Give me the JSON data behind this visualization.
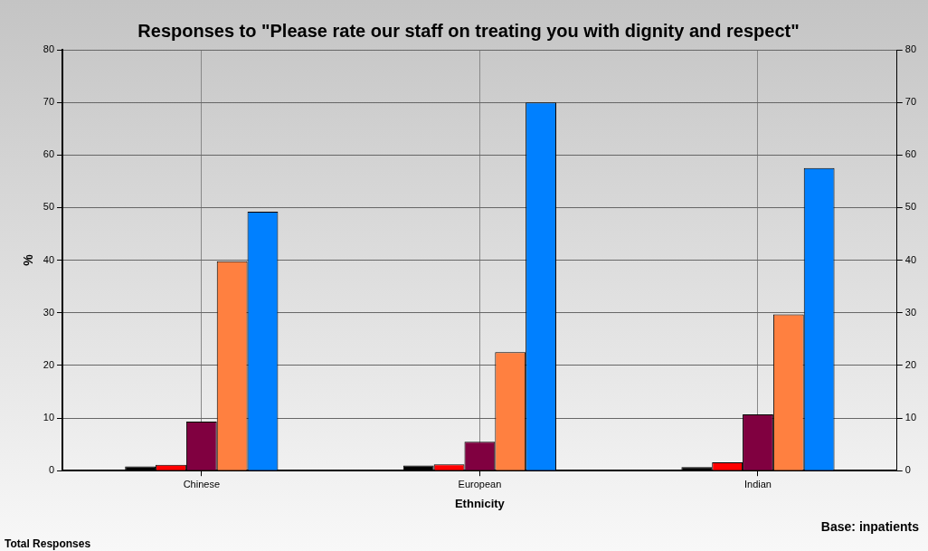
{
  "chart_data": {
    "type": "bar",
    "title": "Responses to \"Please rate our staff on treating you with dignity and respect\"",
    "xlabel": "Ethnicity",
    "ylabel": "%",
    "categories": [
      "Chinese",
      "European",
      "Indian"
    ],
    "series": [
      {
        "color": "#000000",
        "values": [
          0.8,
          1.0,
          0.7
        ]
      },
      {
        "color": "#ff0000",
        "values": [
          1.1,
          1.2,
          1.6
        ]
      },
      {
        "color": "#800040",
        "values": [
          9.3,
          5.5,
          10.7
        ]
      },
      {
        "color": "#ff8040",
        "values": [
          39.8,
          22.5,
          29.7
        ]
      },
      {
        "color": "#0080ff",
        "values": [
          49.2,
          70,
          57.5
        ]
      }
    ],
    "ylim": [
      0,
      80
    ],
    "yticks": [
      0,
      10,
      20,
      30,
      40,
      50,
      60,
      70,
      80
    ],
    "y2lim": [
      0,
      80
    ],
    "y2ticks": [
      0,
      10,
      20,
      30,
      40,
      50,
      60,
      70,
      80
    ],
    "grid": true,
    "legend": false,
    "annotations": [
      "Base: inpatients",
      "Total Responses"
    ]
  }
}
